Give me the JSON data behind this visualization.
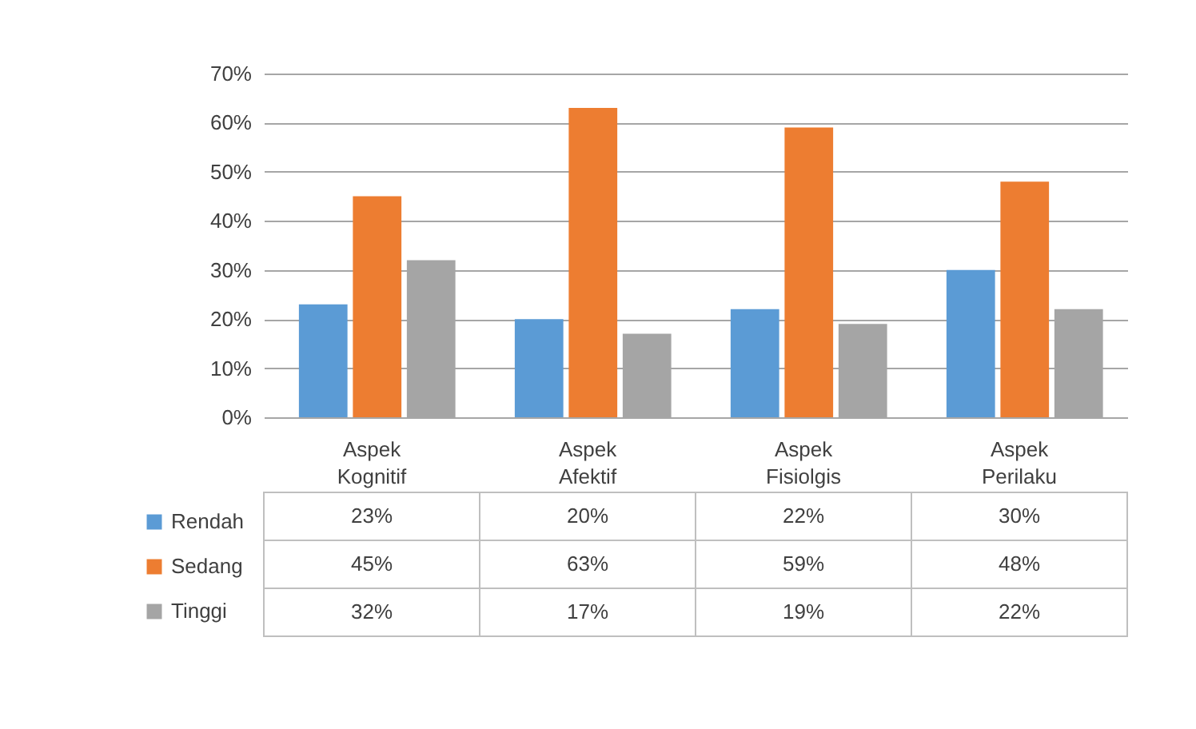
{
  "chart_data": {
    "type": "bar",
    "categories": [
      "Aspek Kognitif",
      "Aspek Afektif",
      "Aspek Fisiolgis",
      "Aspek Perilaku"
    ],
    "series": [
      {
        "name": "Rendah",
        "color": "#5b9bd5",
        "values": [
          23,
          20,
          22,
          30
        ],
        "value_labels": [
          "23%",
          "20%",
          "22%",
          "30%"
        ]
      },
      {
        "name": "Sedang",
        "color": "#ed7d31",
        "values": [
          45,
          63,
          59,
          48
        ],
        "value_labels": [
          "45%",
          "63%",
          "59%",
          "48%"
        ]
      },
      {
        "name": "Tinggi",
        "color": "#a5a5a5",
        "values": [
          32,
          17,
          19,
          22
        ],
        "value_labels": [
          "32%",
          "17%",
          "19%",
          "22%"
        ]
      }
    ],
    "ylim": [
      0,
      70
    ],
    "yticks": [
      {
        "value": 0,
        "label": "0%"
      },
      {
        "value": 10,
        "label": "10%"
      },
      {
        "value": 20,
        "label": "20%"
      },
      {
        "value": 30,
        "label": "30%"
      },
      {
        "value": 40,
        "label": "40%"
      },
      {
        "value": 50,
        "label": "50%"
      },
      {
        "value": 60,
        "label": "60%"
      },
      {
        "value": 70,
        "label": "70%"
      }
    ],
    "grid": "y",
    "legend": "bottom left"
  }
}
